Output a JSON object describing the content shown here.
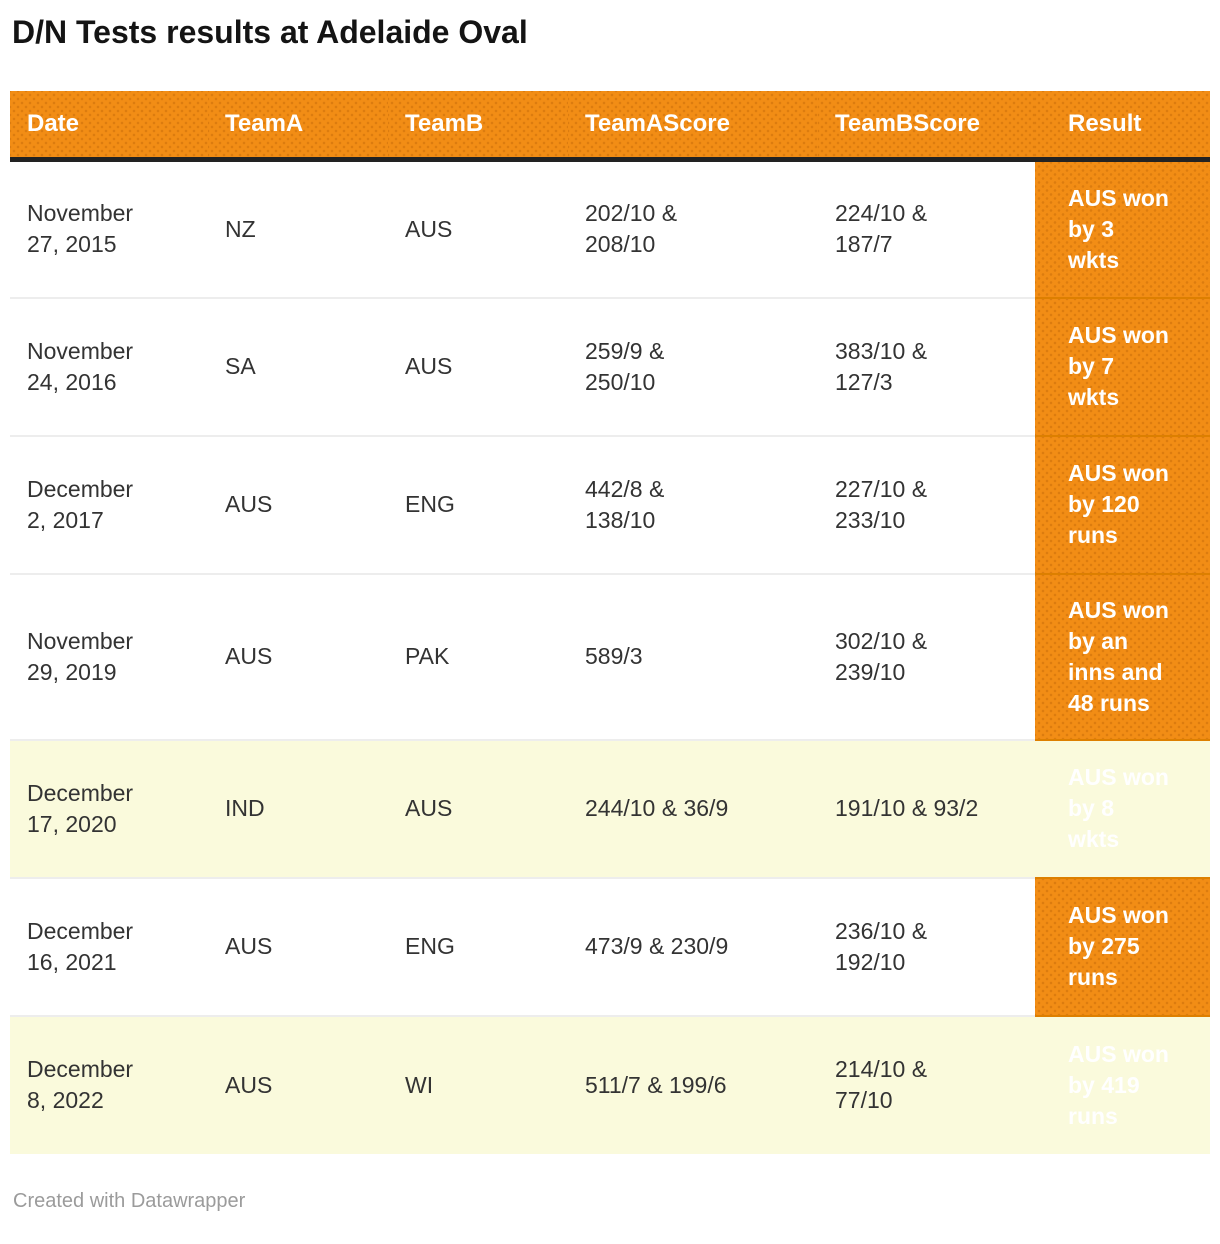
{
  "title": "D/N Tests results at Adelaide Oval",
  "footer_credit": "Created with Datawrapper",
  "colors": {
    "accent_orange": "#F28D15",
    "header_divider": "#222222",
    "row_highlight": "#FAFADC",
    "row_divider": "#EDEDED",
    "result_divider": "#DD7F00",
    "header_text": "#FFFFFF",
    "body_text": "#333333",
    "footer_text": "#9B9B9B"
  },
  "table": {
    "columns": [
      "Date",
      "TeamA",
      "TeamB",
      "TeamAScore",
      "TeamBScore",
      "Result"
    ],
    "rows": [
      {
        "date": "November\n27, 2015",
        "teamA": "NZ",
        "teamB": "AUS",
        "teamAScore": "202/10 &\n208/10",
        "teamBScore": "224/10 &\n187/7",
        "result": "AUS won\nby 3\nwkts"
      },
      {
        "date": "November\n24, 2016",
        "teamA": "SA",
        "teamB": "AUS",
        "teamAScore": "259/9 &\n250/10",
        "teamBScore": "383/10 &\n127/3",
        "result": "AUS won\nby 7\nwkts"
      },
      {
        "date": "December\n2, 2017",
        "teamA": "AUS",
        "teamB": "ENG",
        "teamAScore": "442/8 &\n138/10",
        "teamBScore": "227/10 &\n233/10",
        "result": "AUS won\nby 120\nruns"
      },
      {
        "date": "November\n29, 2019",
        "teamA": "AUS",
        "teamB": "PAK",
        "teamAScore": "589/3",
        "teamBScore": "302/10 &\n239/10",
        "result": "AUS won\nby an\ninns and\n48 runs"
      },
      {
        "date": "December\n17, 2020",
        "teamA": "IND",
        "teamB": "AUS",
        "teamAScore": "244/10 & 36/9",
        "teamBScore": "191/10 & 93/2",
        "result": "AUS won\nby 8\nwkts"
      },
      {
        "date": "December\n16, 2021",
        "teamA": "AUS",
        "teamB": "ENG",
        "teamAScore": "473/9 & 230/9",
        "teamBScore": "236/10 &\n192/10",
        "result": "AUS won\nby 275\nruns"
      },
      {
        "date": "December\n8, 2022",
        "teamA": "AUS",
        "teamB": "WI",
        "teamAScore": "511/7 & 199/6",
        "teamBScore": "214/10 &\n77/10",
        "result": "AUS won\nby 419\nruns"
      }
    ]
  },
  "chart_data": {
    "type": "table",
    "title": "D/N Tests results at Adelaide Oval",
    "columns": [
      "Date",
      "TeamA",
      "TeamB",
      "TeamAScore",
      "TeamBScore",
      "Result"
    ],
    "rows": [
      [
        "November 27, 2015",
        "NZ",
        "AUS",
        "202/10 & 208/10",
        "224/10 & 187/7",
        "AUS won by 3 wkts"
      ],
      [
        "November 24, 2016",
        "SA",
        "AUS",
        "259/9 & 250/10",
        "383/10 & 127/3",
        "AUS won by 7 wkts"
      ],
      [
        "December 2, 2017",
        "AUS",
        "ENG",
        "442/8 & 138/10",
        "227/10 & 233/10",
        "AUS won by 120 runs"
      ],
      [
        "November 29, 2019",
        "AUS",
        "PAK",
        "589/3",
        "302/10 & 239/10",
        "AUS won by an inns and 48 runs"
      ],
      [
        "December 17, 2020",
        "IND",
        "AUS",
        "244/10 & 36/9",
        "191/10 & 93/2",
        "AUS won by 8 wkts"
      ],
      [
        "December 16, 2021",
        "AUS",
        "ENG",
        "473/9 & 230/9",
        "236/10 & 192/10",
        "AUS won by 275 runs"
      ],
      [
        "December 8, 2022",
        "AUS",
        "WI",
        "511/7 & 199/6",
        "214/10 & 77/10",
        "AUS won by 419 runs"
      ]
    ],
    "highlighted_row_indices": [
      4,
      6
    ],
    "legend_position": "none",
    "grid": "horizontal-dividers"
  }
}
